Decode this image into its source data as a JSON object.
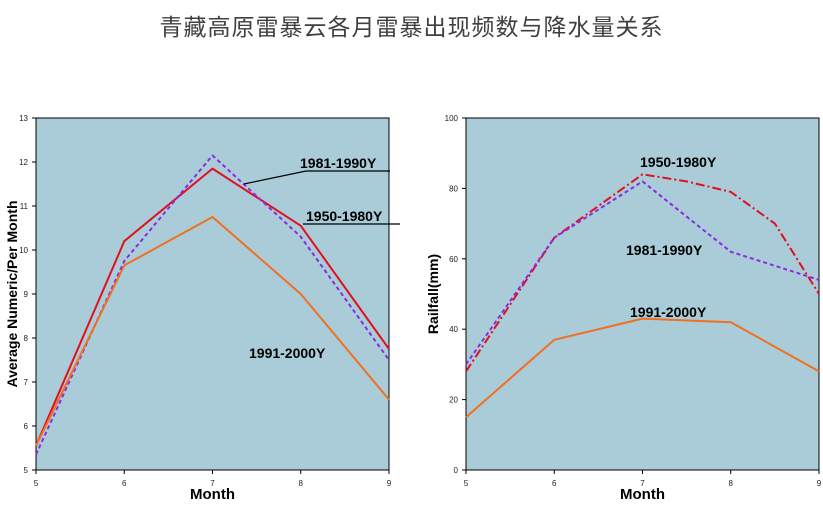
{
  "page_title": "青藏高原雷暴云各月雷暴出现频数与降水量关系",
  "colors": {
    "plot_bg": "#a9ccd8",
    "red": "#e01020",
    "purple": "#8a2be2",
    "orange": "#f07020"
  },
  "chart_data": [
    {
      "type": "line",
      "xlabel": "Month",
      "ylabel": "Average Numeric/Per Month",
      "xlim": [
        5,
        9
      ],
      "ylim": [
        5,
        13
      ],
      "x_ticks": [
        5,
        6,
        7,
        8,
        9
      ],
      "y_ticks": [
        5,
        6,
        7,
        8,
        9,
        10,
        11,
        12,
        13
      ],
      "grid": false,
      "series": [
        {
          "name": "1950-1980Y",
          "color": "red",
          "dash": "solid",
          "x": [
            5,
            6,
            7,
            8,
            9
          ],
          "y": [
            5.55,
            10.2,
            11.85,
            10.55,
            7.75
          ]
        },
        {
          "name": "1981-1990Y",
          "color": "purple",
          "dash": "dashed",
          "x": [
            5,
            6,
            7,
            8,
            9
          ],
          "y": [
            5.35,
            9.75,
            12.15,
            10.3,
            7.5
          ]
        },
        {
          "name": "1991-2000Y",
          "color": "orange",
          "dash": "solid",
          "x": [
            5,
            6,
            7,
            8,
            9
          ],
          "y": [
            5.55,
            9.65,
            10.75,
            9.0,
            6.6
          ]
        }
      ],
      "annotations": [
        "1981-1990Y",
        "1950-1980Y",
        "1991-2000Y"
      ]
    },
    {
      "type": "line",
      "xlabel": "Month",
      "ylabel": "Railfall(mm)",
      "xlim": [
        5,
        9
      ],
      "ylim": [
        0,
        100
      ],
      "x_ticks": [
        5,
        6,
        7,
        8,
        9
      ],
      "y_ticks": [
        0,
        20,
        40,
        60,
        80,
        100
      ],
      "grid": false,
      "series": [
        {
          "name": "1950-1980Y",
          "color": "red",
          "dash": "dashdot",
          "x": [
            5,
            6,
            7,
            7.5,
            8,
            8.5,
            9
          ],
          "y": [
            28,
            66,
            84,
            82,
            79,
            70,
            50
          ]
        },
        {
          "name": "1981-1990Y",
          "color": "purple",
          "dash": "dashed",
          "x": [
            5,
            6,
            7,
            7.5,
            8,
            8.5,
            9
          ],
          "y": [
            30,
            66,
            82,
            72,
            62,
            58,
            54
          ]
        },
        {
          "name": "1991-2000Y",
          "color": "orange",
          "dash": "solid",
          "x": [
            5,
            6,
            7,
            8,
            9
          ],
          "y": [
            15,
            37,
            43,
            42,
            28
          ]
        }
      ],
      "annotations": [
        "1950-1980Y",
        "1981-1990Y",
        "1991-2000Y"
      ]
    }
  ]
}
